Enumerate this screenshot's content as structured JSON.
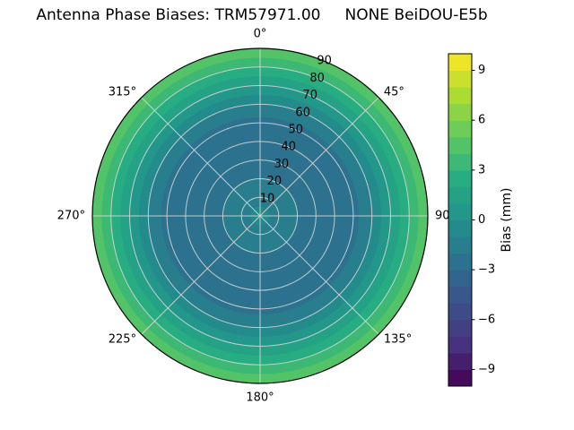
{
  "title": "Antenna Phase Biases: TRM57971.00     NONE BeiDOU-E5b",
  "chart_data": {
    "type": "heatmap",
    "projection": "polar",
    "theta_zero_location": "N",
    "theta_direction": "clockwise",
    "theta_ticks": [
      {
        "angle_deg": 0,
        "label": "0°"
      },
      {
        "angle_deg": 45,
        "label": "45°"
      },
      {
        "angle_deg": 90,
        "label": "90°"
      },
      {
        "angle_deg": 135,
        "label": "135°"
      },
      {
        "angle_deg": 180,
        "label": "180°"
      },
      {
        "angle_deg": 225,
        "label": "225°"
      },
      {
        "angle_deg": 270,
        "label": "270°"
      },
      {
        "angle_deg": 315,
        "label": "315°"
      }
    ],
    "radial_ticks": [
      10,
      20,
      30,
      40,
      50,
      60,
      70,
      80,
      90
    ],
    "radial_label_azimuth_deg": 22.5,
    "radial_range_deg": [
      0,
      90
    ],
    "grid": {
      "radial_step_deg": 10,
      "spoke_step_deg": 45
    },
    "radial_profile": {
      "zenith_deg": [
        0,
        10,
        20,
        30,
        40,
        50,
        60,
        70,
        80,
        90
      ],
      "bias_mm": [
        -0.8,
        -1.2,
        -2.0,
        -2.6,
        -2.9,
        -2.4,
        -1.0,
        1.0,
        3.0,
        5.0
      ]
    },
    "levels_step_mm": 1,
    "colorbar": {
      "label": "Bias (mm)",
      "vmin": -10,
      "vmax": 10,
      "ticks": [
        {
          "value": 9,
          "label": "9"
        },
        {
          "value": 6,
          "label": "6"
        },
        {
          "value": 3,
          "label": "3"
        },
        {
          "value": 0,
          "label": "0"
        },
        {
          "value": -3,
          "label": "−3"
        },
        {
          "value": -6,
          "label": "−6"
        },
        {
          "value": -9,
          "label": "−9"
        }
      ]
    },
    "colormap": {
      "name": "viridis",
      "stops": [
        [
          0.0,
          "#440154"
        ],
        [
          0.125,
          "#46327e"
        ],
        [
          0.25,
          "#3b528b"
        ],
        [
          0.375,
          "#2c728e"
        ],
        [
          0.5,
          "#21918c"
        ],
        [
          0.625,
          "#27ad81"
        ],
        [
          0.75,
          "#5ec962"
        ],
        [
          0.875,
          "#aadc32"
        ],
        [
          1.0,
          "#fde725"
        ]
      ]
    }
  }
}
